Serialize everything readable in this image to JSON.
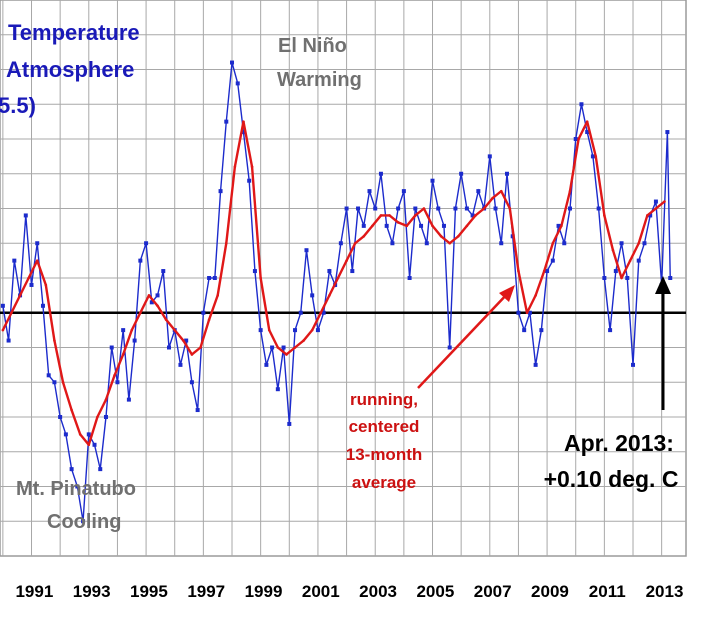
{
  "chart_data": {
    "type": "line",
    "title_lines": [
      "Temperature",
      "Atmosphere",
      "5.5)"
    ],
    "xlabel": "",
    "ylabel": "",
    "x_ticks": [
      "1991",
      "1993",
      "1995",
      "1997",
      "1999",
      "2001",
      "2003",
      "2005",
      "2007",
      "2009",
      "2011",
      "2013"
    ],
    "xlim": [
      1989.9,
      2013.85
    ],
    "ylim": [
      -0.7,
      0.9
    ],
    "grid": true,
    "zero_line": 0,
    "series": [
      {
        "id": "monthly",
        "color": "#1c2bcc",
        "marker": "square",
        "x": [
          1990.0,
          1990.2,
          1990.4,
          1990.6,
          1990.8,
          1991.0,
          1991.2,
          1991.4,
          1991.6,
          1991.8,
          1992.0,
          1992.2,
          1992.4,
          1992.6,
          1992.8,
          1993.0,
          1993.2,
          1993.4,
          1993.6,
          1993.8,
          1994.0,
          1994.2,
          1994.4,
          1994.6,
          1994.8,
          1995.0,
          1995.2,
          1995.4,
          1995.6,
          1995.8,
          1996.0,
          1996.2,
          1996.4,
          1996.6,
          1996.8,
          1997.0,
          1997.2,
          1997.4,
          1997.6,
          1997.8,
          1998.0,
          1998.2,
          1998.4,
          1998.6,
          1998.8,
          1999.0,
          1999.2,
          1999.4,
          1999.6,
          1999.8,
          2000.0,
          2000.2,
          2000.4,
          2000.6,
          2000.8,
          2001.0,
          2001.2,
          2001.4,
          2001.6,
          2001.8,
          2002.0,
          2002.2,
          2002.4,
          2002.6,
          2002.8,
          2003.0,
          2003.2,
          2003.4,
          2003.6,
          2003.8,
          2004.0,
          2004.2,
          2004.4,
          2004.6,
          2004.8,
          2005.0,
          2005.2,
          2005.4,
          2005.6,
          2005.8,
          2006.0,
          2006.2,
          2006.4,
          2006.6,
          2006.8,
          2007.0,
          2007.2,
          2007.4,
          2007.6,
          2007.8,
          2008.0,
          2008.2,
          2008.4,
          2008.6,
          2008.8,
          2009.0,
          2009.2,
          2009.4,
          2009.6,
          2009.8,
          2010.0,
          2010.2,
          2010.4,
          2010.6,
          2010.8,
          2011.0,
          2011.2,
          2011.4,
          2011.6,
          2011.8,
          2012.0,
          2012.2,
          2012.4,
          2012.6,
          2012.8,
          2013.0,
          2013.2,
          2013.3
        ],
        "y": [
          0.02,
          -0.08,
          0.15,
          0.05,
          0.28,
          0.08,
          0.2,
          0.02,
          -0.18,
          -0.2,
          -0.3,
          -0.35,
          -0.45,
          -0.5,
          -0.6,
          -0.35,
          -0.38,
          -0.45,
          -0.3,
          -0.1,
          -0.2,
          -0.05,
          -0.25,
          -0.08,
          0.15,
          0.2,
          0.03,
          0.05,
          0.12,
          -0.1,
          -0.05,
          -0.15,
          -0.08,
          -0.2,
          -0.28,
          0.0,
          0.1,
          0.1,
          0.35,
          0.55,
          0.72,
          0.66,
          0.52,
          0.38,
          0.12,
          -0.05,
          -0.15,
          -0.1,
          -0.22,
          -0.1,
          -0.32,
          -0.05,
          0.0,
          0.18,
          0.05,
          -0.05,
          0.0,
          0.12,
          0.08,
          0.2,
          0.3,
          0.12,
          0.3,
          0.25,
          0.35,
          0.3,
          0.4,
          0.25,
          0.2,
          0.3,
          0.35,
          0.1,
          0.3,
          0.25,
          0.2,
          0.38,
          0.3,
          0.25,
          -0.1,
          0.3,
          0.4,
          0.3,
          0.28,
          0.35,
          0.3,
          0.45,
          0.3,
          0.2,
          0.4,
          0.22,
          0.0,
          -0.05,
          0.0,
          -0.15,
          -0.05,
          0.12,
          0.15,
          0.25,
          0.2,
          0.3,
          0.5,
          0.6,
          0.52,
          0.45,
          0.3,
          0.1,
          -0.05,
          0.12,
          0.2,
          0.1,
          -0.15,
          0.15,
          0.2,
          0.28,
          0.32,
          0.08,
          0.52,
          0.1
        ],
        "values_note": ""
      },
      {
        "id": "running-avg",
        "color": "#e01818",
        "x": [
          1990.0,
          1990.3,
          1990.6,
          1990.9,
          1991.2,
          1991.5,
          1991.8,
          1992.1,
          1992.4,
          1992.7,
          1993.0,
          1993.3,
          1993.6,
          1993.9,
          1994.2,
          1994.5,
          1994.8,
          1995.1,
          1995.4,
          1995.7,
          1996.0,
          1996.3,
          1996.6,
          1996.9,
          1997.2,
          1997.5,
          1997.8,
          1998.1,
          1998.4,
          1998.7,
          1999.0,
          1999.3,
          1999.6,
          1999.9,
          2000.2,
          2000.5,
          2000.8,
          2001.1,
          2001.4,
          2001.7,
          2002.0,
          2002.3,
          2002.6,
          2002.9,
          2003.2,
          2003.5,
          2003.8,
          2004.1,
          2004.4,
          2004.7,
          2005.0,
          2005.3,
          2005.6,
          2005.9,
          2006.2,
          2006.5,
          2006.8,
          2007.1,
          2007.4,
          2007.7,
          2008.0,
          2008.3,
          2008.6,
          2008.9,
          2009.2,
          2009.5,
          2009.8,
          2010.1,
          2010.4,
          2010.7,
          2011.0,
          2011.3,
          2011.6,
          2011.9,
          2012.2,
          2012.5,
          2012.8,
          2013.1
        ],
        "y": [
          -0.05,
          0.0,
          0.05,
          0.1,
          0.15,
          0.08,
          -0.08,
          -0.2,
          -0.28,
          -0.35,
          -0.38,
          -0.3,
          -0.25,
          -0.18,
          -0.12,
          -0.05,
          0.0,
          0.05,
          0.02,
          -0.02,
          -0.05,
          -0.08,
          -0.12,
          -0.1,
          -0.02,
          0.05,
          0.2,
          0.42,
          0.55,
          0.42,
          0.1,
          -0.05,
          -0.1,
          -0.12,
          -0.1,
          -0.08,
          -0.05,
          0.0,
          0.05,
          0.1,
          0.15,
          0.2,
          0.22,
          0.25,
          0.28,
          0.28,
          0.26,
          0.25,
          0.28,
          0.3,
          0.25,
          0.22,
          0.2,
          0.22,
          0.25,
          0.28,
          0.3,
          0.33,
          0.35,
          0.3,
          0.12,
          0.0,
          0.05,
          0.12,
          0.2,
          0.25,
          0.35,
          0.5,
          0.55,
          0.45,
          0.28,
          0.18,
          0.1,
          0.15,
          0.2,
          0.28,
          0.3,
          0.32
        ],
        "values_note": ""
      }
    ],
    "annotations": {
      "el_nino": [
        "El Niño",
        "Warming"
      ],
      "pinatubo": [
        "Mt. Pinatubo",
        "Cooling"
      ],
      "running_avg": [
        "running,",
        "centered",
        "13-month",
        "average"
      ],
      "latest": [
        "Apr. 2013:",
        "+0.10 deg. C"
      ]
    }
  }
}
